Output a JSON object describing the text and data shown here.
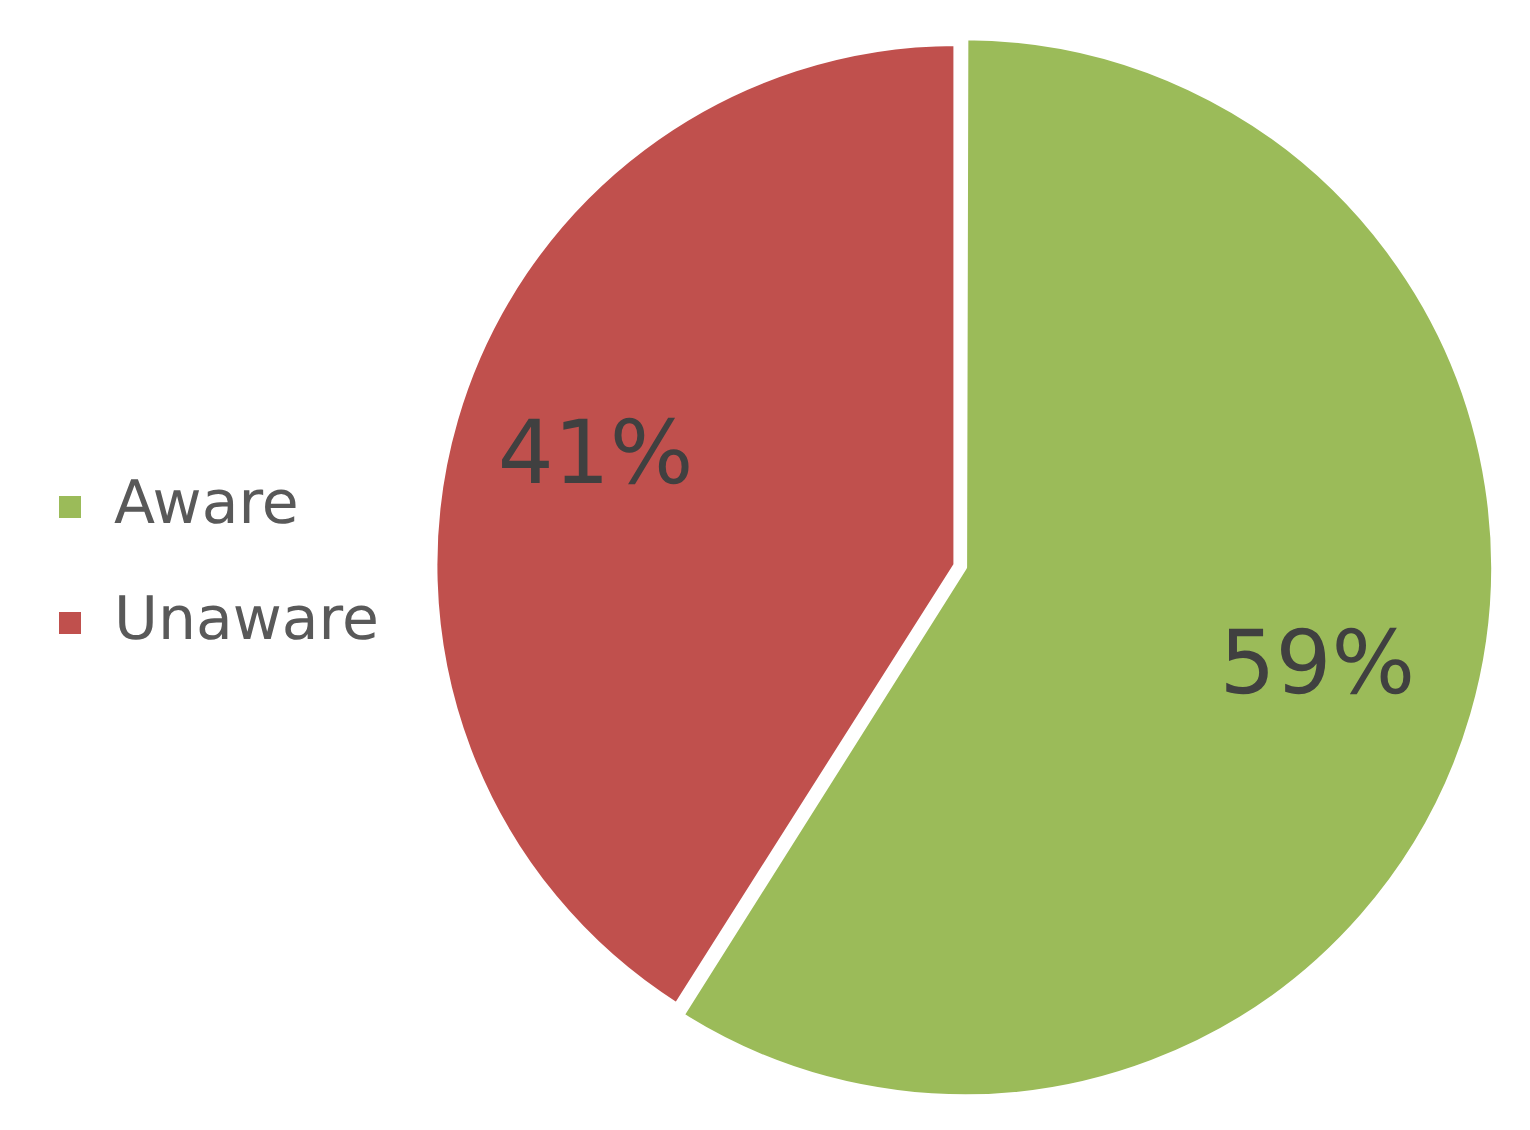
{
  "chart_data": {
    "type": "pie",
    "categories": [
      "Aware",
      "Unaware"
    ],
    "values": [
      59,
      41
    ],
    "colors": [
      "#9bbb59",
      "#c0504d"
    ],
    "value_labels": [
      "59%",
      "41%"
    ],
    "legend": "left"
  }
}
